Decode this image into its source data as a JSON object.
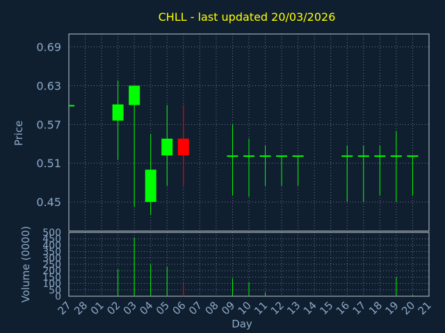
{
  "title": "CHLL - last updated 20/03/2026",
  "colors": {
    "background": "#0f1f30",
    "up": "#00ff00",
    "down": "#ff0000",
    "title": "#ffff00",
    "axis_text": "#8fa9c7",
    "grid": "#c0c8d0"
  },
  "chart_data": [
    {
      "type": "candlestick",
      "ylabel": "Price",
      "ylim": [
        0.405,
        0.71
      ],
      "yticks": [
        "0.69",
        "0.63",
        "0.57",
        "0.51",
        "0.45"
      ],
      "categories": [
        "27",
        "28",
        "01",
        "02",
        "03",
        "04",
        "05",
        "06",
        "07",
        "08",
        "09",
        "10",
        "11",
        "12",
        "13",
        "14",
        "15",
        "16",
        "17",
        "18",
        "19",
        "20",
        "21"
      ],
      "candles": [
        {
          "day": "27",
          "open": 0.6,
          "high": 0.6,
          "low": 0.6,
          "close": 0.6,
          "dir": "flat"
        },
        {
          "day": "02",
          "open": 0.576,
          "high": 0.638,
          "low": 0.515,
          "close": 0.601,
          "dir": "up"
        },
        {
          "day": "03",
          "open": 0.6,
          "high": 0.63,
          "low": 0.442,
          "close": 0.63,
          "dir": "up"
        },
        {
          "day": "04",
          "open": 0.45,
          "high": 0.555,
          "low": 0.43,
          "close": 0.5,
          "dir": "up"
        },
        {
          "day": "05",
          "open": 0.522,
          "high": 0.6,
          "low": 0.475,
          "close": 0.548,
          "dir": "up"
        },
        {
          "day": "06",
          "open": 0.548,
          "high": 0.6,
          "low": 0.475,
          "close": 0.522,
          "dir": "down"
        },
        {
          "day": "09",
          "open": 0.522,
          "high": 0.57,
          "low": 0.46,
          "close": 0.522,
          "dir": "flat"
        },
        {
          "day": "10",
          "open": 0.522,
          "high": 0.548,
          "low": 0.458,
          "close": 0.522,
          "dir": "flat"
        },
        {
          "day": "11",
          "open": 0.522,
          "high": 0.537,
          "low": 0.475,
          "close": 0.522,
          "dir": "flat"
        },
        {
          "day": "12",
          "open": 0.522,
          "high": 0.522,
          "low": 0.475,
          "close": 0.522,
          "dir": "flat"
        },
        {
          "day": "13",
          "open": 0.522,
          "high": 0.522,
          "low": 0.475,
          "close": 0.522,
          "dir": "flat"
        },
        {
          "day": "16",
          "open": 0.522,
          "high": 0.537,
          "low": 0.45,
          "close": 0.522,
          "dir": "flat"
        },
        {
          "day": "17",
          "open": 0.522,
          "high": 0.537,
          "low": 0.45,
          "close": 0.522,
          "dir": "flat"
        },
        {
          "day": "18",
          "open": 0.522,
          "high": 0.537,
          "low": 0.46,
          "close": 0.522,
          "dir": "flat"
        },
        {
          "day": "19",
          "open": 0.522,
          "high": 0.56,
          "low": 0.45,
          "close": 0.522,
          "dir": "flat"
        },
        {
          "day": "20",
          "open": 0.522,
          "high": 0.522,
          "low": 0.46,
          "close": 0.522,
          "dir": "flat"
        }
      ]
    },
    {
      "type": "bar",
      "ylabel": "Volume (0000)",
      "xlabel": "Day",
      "ylim": [
        0,
        500
      ],
      "yticks": [
        "500",
        "450",
        "400",
        "350",
        "300",
        "250",
        "200",
        "150",
        "100",
        "50",
        "0"
      ],
      "categories": [
        "27",
        "28",
        "01",
        "02",
        "03",
        "04",
        "05",
        "06",
        "07",
        "08",
        "09",
        "10",
        "11",
        "12",
        "13",
        "14",
        "15",
        "16",
        "17",
        "18",
        "19",
        "20",
        "21"
      ],
      "values": [
        {
          "day": "02",
          "volume": 210,
          "dir": "up"
        },
        {
          "day": "03",
          "volume": 460,
          "dir": "up"
        },
        {
          "day": "04",
          "volume": 250,
          "dir": "up"
        },
        {
          "day": "05",
          "volume": 230,
          "dir": "up"
        },
        {
          "day": "06",
          "volume": 95,
          "dir": "down"
        },
        {
          "day": "09",
          "volume": 140,
          "dir": "up"
        },
        {
          "day": "10",
          "volume": 110,
          "dir": "up"
        },
        {
          "day": "11",
          "volume": 30,
          "dir": "up"
        },
        {
          "day": "19",
          "volume": 150,
          "dir": "up"
        },
        {
          "day": "20",
          "volume": 10,
          "dir": "up"
        }
      ]
    }
  ]
}
